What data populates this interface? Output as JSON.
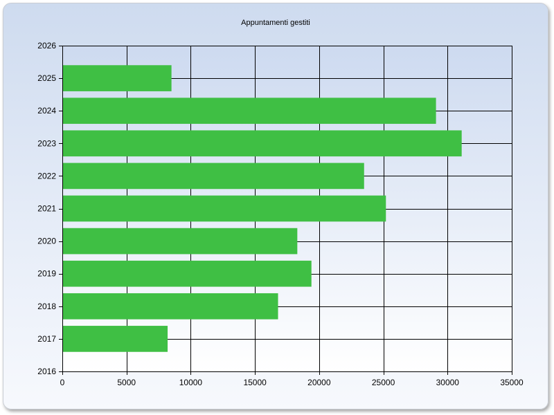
{
  "chart_data": {
    "type": "bar",
    "orientation": "horizontal",
    "title": "Appuntamenti gestiti",
    "xlabel": "",
    "ylabel": "",
    "xlim": [
      0,
      35000
    ],
    "ylim": [
      2016,
      2026
    ],
    "x_ticks": [
      0,
      5000,
      10000,
      15000,
      20000,
      25000,
      30000,
      35000
    ],
    "y_ticks": [
      2016,
      2017,
      2018,
      2019,
      2020,
      2021,
      2022,
      2023,
      2024,
      2025,
      2026
    ],
    "grid": true,
    "legend": "none",
    "categories": [
      2017,
      2018,
      2019,
      2020,
      2021,
      2022,
      2023,
      2024,
      2025
    ],
    "values": [
      8200,
      16800,
      19400,
      18300,
      25200,
      23500,
      31100,
      29100,
      8500
    ],
    "bar_color": "#3fbf44",
    "plot_background_top": "#cddaf0",
    "plot_background_bottom": "#ffffff"
  }
}
